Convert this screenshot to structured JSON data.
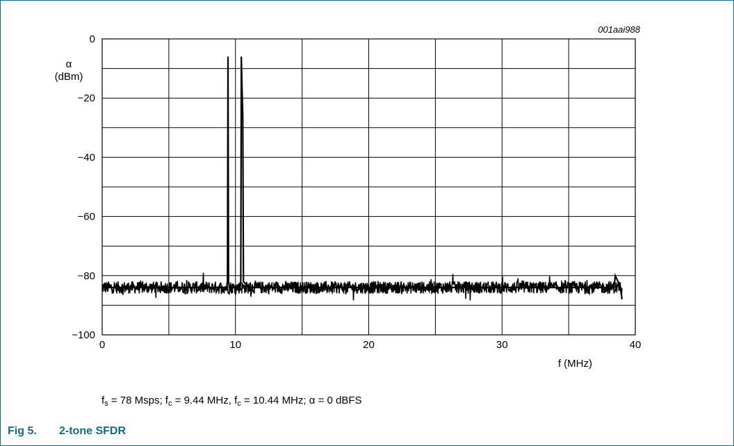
{
  "chart_data": {
    "type": "line",
    "figure_code": "001aai988",
    "ylabel_symbol": "α",
    "ylabel_unit": "(dBm)",
    "xlabel": "f (MHz)",
    "xlim": [
      0,
      40
    ],
    "ylim": [
      -100,
      0
    ],
    "x_ticks": [
      0,
      10,
      20,
      30,
      40
    ],
    "y_ticks": [
      0,
      -20,
      -40,
      -60,
      -80,
      -100
    ],
    "x_grid_step": 5,
    "y_grid_step": 10,
    "grid": true,
    "legend": "none",
    "noise_floor_dbm": -84,
    "noise_span_mhz": [
      0,
      39
    ],
    "series": [
      {
        "x": [
          0,
          9.0,
          9.35,
          9.4,
          9.44,
          9.48,
          9.55,
          10.0,
          10.35,
          10.4,
          10.44,
          10.5,
          10.55,
          10.6,
          11.0,
          38.4,
          38.5,
          38.9,
          39.0
        ],
        "y": [
          -84,
          -84,
          -84,
          -82,
          -6,
          -82,
          -84,
          -84,
          -84,
          -82,
          -6,
          -18,
          -26,
          -82,
          -84,
          -84,
          -80,
          -84,
          -88
        ]
      }
    ]
  },
  "caption": {
    "fs_var": "f",
    "fs_sub": "s",
    "fs_text": " = 78 Msps; ",
    "fc1_var": "f",
    "fc1_sub": "c",
    "fc1_text": " = 9.44 MHz, ",
    "fc2_var": "f",
    "fc2_sub": "c",
    "fc2_text": " = 10.44 MHz; ",
    "alpha_text": "α = 0 dBFS"
  },
  "figure": {
    "number": "Fig 5.",
    "title": "2-tone SFDR"
  }
}
